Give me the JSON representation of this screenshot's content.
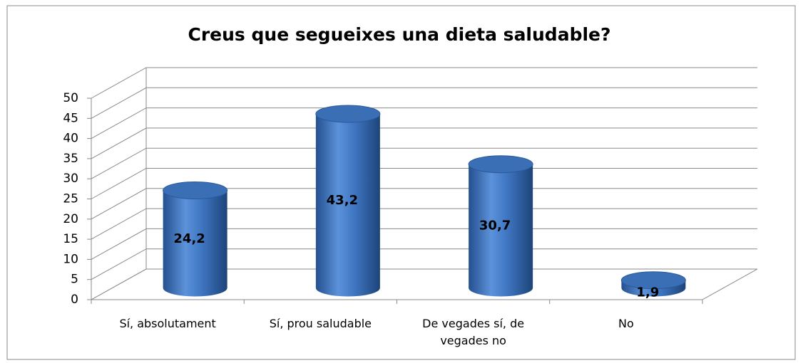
{
  "chart_data": {
    "type": "bar3d-cylinder",
    "title": "Creus que segueixes una dieta saludable?",
    "categories": [
      "Sí, absolutament",
      "Sí, prou saludable",
      "De vegades sí, de vegades no",
      "No"
    ],
    "values": [
      24.2,
      43.2,
      30.7,
      1.9
    ],
    "value_labels": [
      "24,2",
      "43,2",
      "30,7",
      "1,9"
    ],
    "color": "#3a6fb5",
    "ylim": [
      0,
      50
    ],
    "yticks": [
      0,
      5,
      10,
      15,
      20,
      25,
      30,
      35,
      40,
      45,
      50
    ],
    "grid": true
  }
}
